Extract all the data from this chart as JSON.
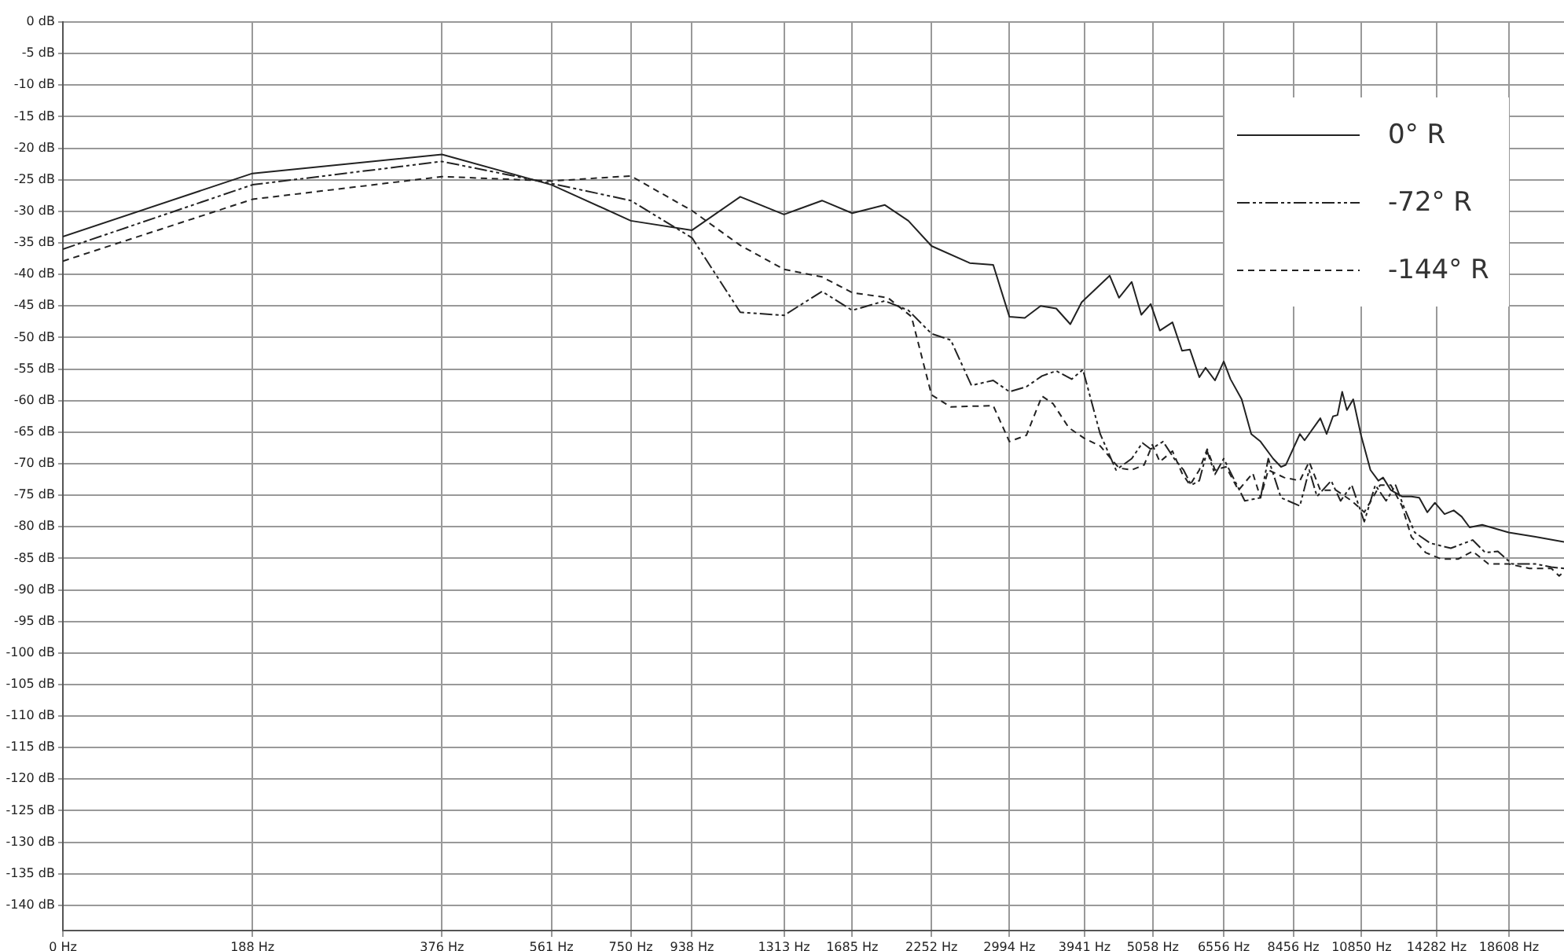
{
  "chart_data": {
    "type": "line",
    "log": "x",
    "grid": true,
    "legend": "top right",
    "marker": "none",
    "xlim": [
      0,
      22750
    ],
    "ylim": [
      -144,
      0
    ],
    "xticks": [
      {
        "value": 0,
        "label": "0 Hz"
      },
      {
        "value": 188,
        "label": "188 Hz"
      },
      {
        "value": 376,
        "label": "376 Hz"
      },
      {
        "value": 561,
        "label": "561 Hz"
      },
      {
        "value": 750,
        "label": "750 Hz"
      },
      {
        "value": 938,
        "label": "938 Hz"
      },
      {
        "value": 1313,
        "label": "1313 Hz"
      },
      {
        "value": 1685,
        "label": "1685 Hz"
      },
      {
        "value": 2252,
        "label": "2252 Hz"
      },
      {
        "value": 2994,
        "label": "2994 Hz"
      },
      {
        "value": 3941,
        "label": "3941 Hz"
      },
      {
        "value": 5058,
        "label": "5058 Hz"
      },
      {
        "value": 6556,
        "label": "6556 Hz"
      },
      {
        "value": 8456,
        "label": "8456 Hz"
      },
      {
        "value": 10850,
        "label": "10850 Hz"
      },
      {
        "value": 14282,
        "label": "14282 Hz"
      },
      {
        "value": 18608,
        "label": "18608 Hz"
      }
    ],
    "yticks": [
      {
        "value": 0,
        "label": "0 dB"
      },
      {
        "value": -5,
        "label": "-5 dB"
      },
      {
        "value": -10,
        "label": "-10 dB"
      },
      {
        "value": -15,
        "label": "-15 dB"
      },
      {
        "value": -20,
        "label": "-20 dB"
      },
      {
        "value": -25,
        "label": "-25 dB"
      },
      {
        "value": -30,
        "label": "-30 dB"
      },
      {
        "value": -35,
        "label": "-35 dB"
      },
      {
        "value": -40,
        "label": "-40 dB"
      },
      {
        "value": -45,
        "label": "-45 dB"
      },
      {
        "value": -50,
        "label": "-50 dB"
      },
      {
        "value": -55,
        "label": "-55 dB"
      },
      {
        "value": -60,
        "label": "-60 dB"
      },
      {
        "value": -65,
        "label": "-65 dB"
      },
      {
        "value": -70,
        "label": "-70 dB"
      },
      {
        "value": -75,
        "label": "-75 dB"
      },
      {
        "value": -80,
        "label": "-80 dB"
      },
      {
        "value": -85,
        "label": "-85 dB"
      },
      {
        "value": -90,
        "label": "-90 dB"
      },
      {
        "value": -95,
        "label": "-95 dB"
      },
      {
        "value": -100,
        "label": "-100 dB"
      },
      {
        "value": -105,
        "label": "-105 dB"
      },
      {
        "value": -110,
        "label": "-110 dB"
      },
      {
        "value": -115,
        "label": "-115 dB"
      },
      {
        "value": -120,
        "label": "-120 dB"
      },
      {
        "value": -125,
        "label": "-125 dB"
      },
      {
        "value": -130,
        "label": "-130 dB"
      },
      {
        "value": -135,
        "label": "-135 dB"
      },
      {
        "value": -140,
        "label": "-140 dB"
      }
    ],
    "series": [
      {
        "name": "0° R",
        "color": "#222222",
        "line_style": "solid",
        "x": [
          94,
          188,
          376,
          561,
          750,
          938,
          1119,
          1313,
          1509,
          1685,
          1899,
          2069,
          2252,
          2590,
          2822,
          2994,
          3167,
          3356,
          3553,
          3741,
          3900,
          4320,
          4470,
          4683,
          4850,
          5020,
          5190,
          5435,
          5628,
          5793,
          5996,
          6133,
          6349,
          6556,
          6720,
          7000,
          7250,
          7500,
          7853,
          8083,
          8225,
          8660,
          8810,
          9333,
          9550,
          9775,
          9938,
          10110,
          10285,
          10525,
          10830,
          11210,
          11540,
          11740,
          12080,
          12580,
          13020,
          13400,
          13800,
          14190,
          14700,
          15200,
          15650,
          16110,
          16870,
          17860,
          18590,
          20500,
          22750
        ],
        "values": [
          -34,
          -24,
          -21,
          -25.8,
          -31.5,
          -33,
          -27.7,
          -30.5,
          -28.3,
          -30.3,
          -29,
          -31.5,
          -35.5,
          -38.2,
          -38.5,
          -46.7,
          -46.9,
          -45,
          -45.4,
          -47.9,
          -44.4,
          -40.2,
          -43.7,
          -41.2,
          -46.4,
          -44.7,
          -48.9,
          -47.6,
          -52.1,
          -51.9,
          -56.3,
          -54.8,
          -56.8,
          -53.8,
          -56.6,
          -59.8,
          -65.3,
          -66.5,
          -69.2,
          -70.5,
          -70.2,
          -65.3,
          -66.3,
          -62.8,
          -65.3,
          -62.5,
          -62.3,
          -58.6,
          -61.5,
          -59.8,
          -65.5,
          -71,
          -72.7,
          -72.2,
          -74.2,
          -75.2,
          -75.2,
          -75.4,
          -77.7,
          -76.2,
          -78,
          -77.4,
          -78.4,
          -80.1,
          -79.7,
          -80.4,
          -80.9,
          -81.6,
          -82.4
        ]
      },
      {
        "name": "-72° R",
        "color": "#222222",
        "line_style": "dashdot",
        "x": [
          94,
          188,
          376,
          561,
          750,
          938,
          1119,
          1313,
          1509,
          1685,
          1899,
          2069,
          2252,
          2416,
          2606,
          2822,
          2994,
          3186,
          3373,
          3553,
          3760,
          3917,
          4173,
          4421,
          4683,
          4870,
          5020,
          5252,
          5470,
          5660,
          5820,
          5996,
          6170,
          6349,
          6556,
          7080,
          7500,
          7716,
          8083,
          8660,
          8960,
          9220,
          9710,
          10050,
          10470,
          10960,
          11410,
          11870,
          12290,
          12650,
          13180,
          13950,
          15040,
          16290,
          17060,
          17860,
          18810,
          20500,
          21720,
          22750
        ],
        "values": [
          -36,
          -25.8,
          -22.1,
          -25.6,
          -28.3,
          -34.2,
          -46,
          -46.5,
          -42.7,
          -45.7,
          -44.2,
          -45.7,
          -49.4,
          -50.4,
          -57.6,
          -56.8,
          -58.6,
          -57.8,
          -56.1,
          -55.3,
          -56.6,
          -55.1,
          -65.3,
          -71,
          -69.2,
          -66.7,
          -67.7,
          -66.5,
          -69.2,
          -71,
          -73.4,
          -72.7,
          -68,
          -71.7,
          -69.2,
          -75.9,
          -75.4,
          -69.2,
          -75.4,
          -76.7,
          -71,
          -75.2,
          -72.7,
          -75.9,
          -73.4,
          -79.2,
          -73.4,
          -75.9,
          -73.4,
          -76.7,
          -80.9,
          -82.6,
          -83.4,
          -82.1,
          -84.1,
          -83.9,
          -85.9,
          -85.9,
          -86.4,
          -86.6
        ]
      },
      {
        "name": "-144° R",
        "color": "#222222",
        "line_style": "dashed",
        "x": [
          94,
          188,
          376,
          561,
          750,
          938,
          1119,
          1313,
          1509,
          1685,
          1920,
          2093,
          2252,
          2416,
          2822,
          2994,
          3186,
          3373,
          3513,
          3720,
          3941,
          4173,
          4470,
          4683,
          4900,
          5050,
          5190,
          5435,
          5628,
          5793,
          5996,
          6170,
          6349,
          6610,
          6920,
          7290,
          7500,
          7716,
          8180,
          8660,
          8960,
          9333,
          9880,
          10470,
          10960,
          11610,
          12080,
          12580,
          13020,
          13720,
          14520,
          15460,
          16290,
          17260,
          18590,
          20040,
          21720,
          22350,
          22750
        ],
        "values": [
          -37.9,
          -28.1,
          -24.5,
          -25.2,
          -24.4,
          -29.9,
          -35.4,
          -39.2,
          -40.4,
          -42.9,
          -43.7,
          -46.7,
          -59.1,
          -61,
          -60.8,
          -66.5,
          -65.5,
          -59.3,
          -60.5,
          -64.3,
          -66,
          -67.2,
          -70.7,
          -71,
          -70.2,
          -67,
          -69.7,
          -68,
          -71.5,
          -73.4,
          -71,
          -67.7,
          -71,
          -70.5,
          -74.2,
          -71.5,
          -75.4,
          -71,
          -72.2,
          -72.7,
          -69.7,
          -74.2,
          -74.2,
          -75.9,
          -77.7,
          -73.4,
          -73.4,
          -76.7,
          -81.6,
          -84.1,
          -85.1,
          -85.1,
          -83.9,
          -85.9,
          -85.9,
          -86.6,
          -86.6,
          -87.8,
          -87.1
        ]
      }
    ]
  }
}
